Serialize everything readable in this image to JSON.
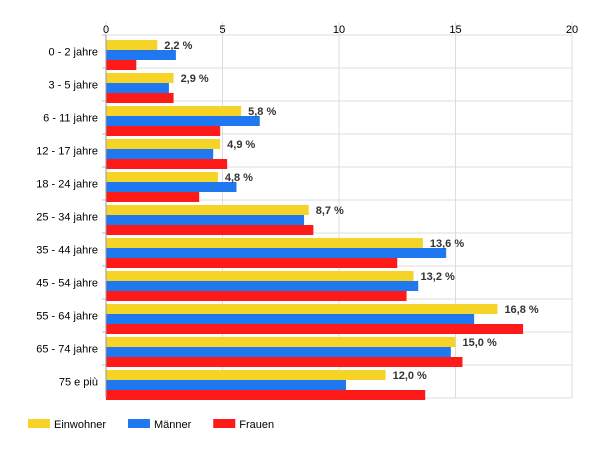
{
  "chart_data": {
    "type": "bar",
    "orientation": "horizontal",
    "title": "",
    "xlabel": "",
    "ylabel": "",
    "xlim": [
      0,
      20
    ],
    "x_ticks": [
      "0",
      "5",
      "10",
      "15",
      "20"
    ],
    "x_tick_values": [
      0,
      5,
      10,
      15,
      20
    ],
    "grid": true,
    "legend_position": "bottom-left",
    "categories": [
      "0 - 2 jahre",
      "3 - 5 jahre",
      "6 - 11 jahre",
      "12 - 17 jahre",
      "18 - 24 jahre",
      "25 - 34 jahre",
      "35 - 44 jahre",
      "45 - 54 jahre",
      "55 - 64 jahre",
      "65 - 74 jahre",
      "75 e più"
    ],
    "series": [
      {
        "name": "Einwohner",
        "color": "#f5d327",
        "values": [
          2.2,
          2.9,
          5.8,
          4.9,
          4.8,
          8.7,
          13.6,
          13.2,
          16.8,
          15.0,
          12.0
        ],
        "data_labels": [
          "2,2 %",
          "2,9 %",
          "5,8 %",
          "4,9 %",
          "4,8 %",
          "8,7 %",
          "13,6 %",
          "13,2 %",
          "16,8 %",
          "15,0 %",
          "12,0 %"
        ]
      },
      {
        "name": "Männer",
        "color": "#1f78f0",
        "values": [
          3.0,
          2.7,
          6.6,
          4.6,
          5.6,
          8.5,
          14.6,
          13.4,
          15.8,
          14.8,
          10.3
        ]
      },
      {
        "name": "Frauen",
        "color": "#ff1a1a",
        "values": [
          1.3,
          2.9,
          4.9,
          5.2,
          4.0,
          8.9,
          12.5,
          12.9,
          17.9,
          15.3,
          13.7
        ]
      }
    ]
  }
}
